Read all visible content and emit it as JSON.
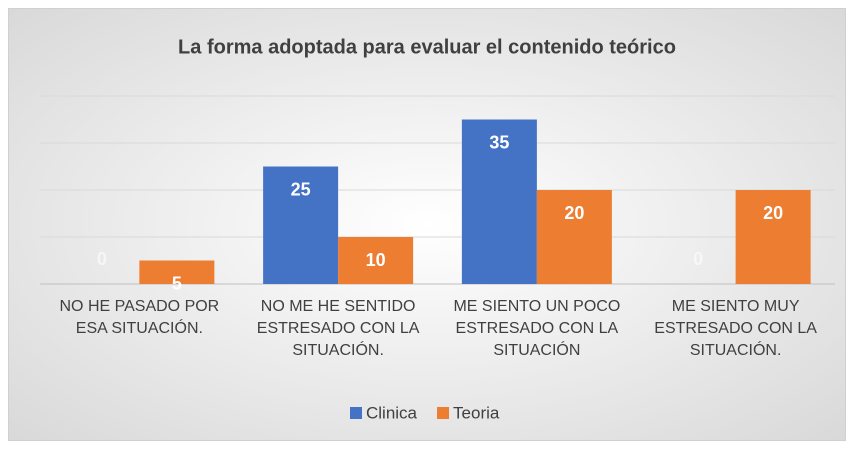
{
  "chart_data": {
    "type": "bar",
    "title": "La forma adoptada para evaluar el contenido teórico",
    "categories": [
      "NO HE PASADO POR ESA SITUACIÓN.",
      "NO ME HE SENTIDO ESTRESADO CON LA SITUACIÓN.",
      "ME SIENTO UN POCO ESTRESADO CON LA SITUACIÓN",
      "ME SIENTO MUY ESTRESADO CON LA SITUACIÓN."
    ],
    "series": [
      {
        "name": "Clinica",
        "color": "#4472c4",
        "values": [
          0,
          25,
          35,
          0
        ]
      },
      {
        "name": "Teoria",
        "color": "#ed7d31",
        "values": [
          5,
          10,
          20,
          20
        ]
      }
    ],
    "ylim": [
      0,
      40
    ],
    "yticks": [
      0,
      10,
      20,
      30,
      40
    ],
    "grid": true,
    "legend": "bottom"
  }
}
